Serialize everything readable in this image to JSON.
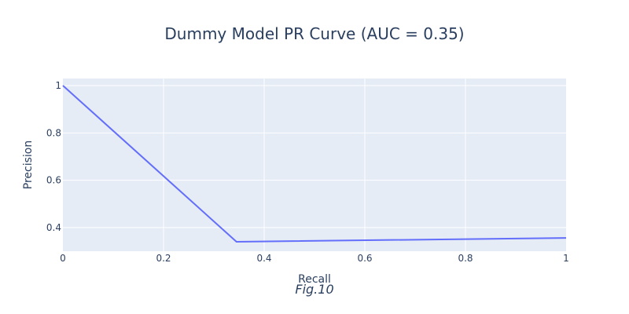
{
  "chart_data": {
    "type": "line",
    "title": "Dummy Model PR Curve (AUC = 0.35)",
    "xlabel": "Recall",
    "ylabel": "Precision",
    "caption": "Fig.10",
    "xlim": [
      0,
      1
    ],
    "ylim": [
      0.3,
      1.03
    ],
    "x_ticks": [
      0,
      0.2,
      0.4,
      0.6,
      0.8,
      1
    ],
    "x_tick_labels": [
      "0",
      "0.2",
      "0.4",
      "0.6",
      "0.8",
      "1"
    ],
    "y_ticks": [
      0.4,
      0.6,
      0.8,
      1
    ],
    "y_tick_labels": [
      "0.4",
      "0.6",
      "0.8",
      "1"
    ],
    "grid": true,
    "series": [
      {
        "x": [
          0,
          0.345,
          1
        ],
        "y": [
          1,
          0.34,
          0.356
        ],
        "color": "#636efa"
      }
    ],
    "colors": {
      "plot_background": "#e5ecf6",
      "grid": "#ffffff",
      "text": "#2a3f5f"
    }
  }
}
